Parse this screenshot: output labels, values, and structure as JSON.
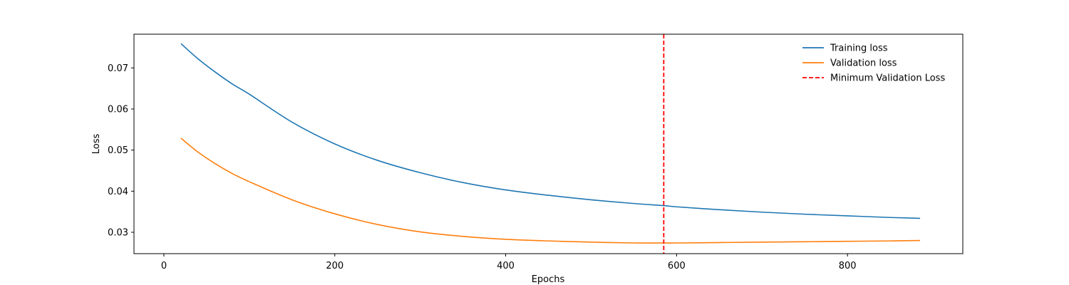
{
  "chart_data": {
    "type": "line",
    "title": "",
    "xlabel": "Epochs",
    "ylabel": "Loss",
    "xlim": [
      -35,
      935
    ],
    "ylim": [
      0.0248,
      0.0782
    ],
    "xticks": [
      0,
      200,
      400,
      600,
      800
    ],
    "yticks": [
      0.03,
      0.04,
      0.05,
      0.06,
      0.07
    ],
    "grid": false,
    "legend_position": "top-right",
    "x": [
      20,
      40,
      60,
      80,
      100,
      150,
      200,
      250,
      300,
      350,
      400,
      450,
      500,
      550,
      585,
      600,
      650,
      700,
      750,
      800,
      850,
      885
    ],
    "series": [
      {
        "name": "Training loss",
        "color": "#1f77b4",
        "style": "solid",
        "values": [
          0.0759,
          0.0722,
          0.069,
          0.0661,
          0.0636,
          0.0568,
          0.0515,
          0.0475,
          0.0445,
          0.0421,
          0.0403,
          0.039,
          0.0379,
          0.037,
          0.0365,
          0.0362,
          0.0355,
          0.0349,
          0.0344,
          0.034,
          0.0336,
          0.0334
        ]
      },
      {
        "name": "Validation loss",
        "color": "#ff7f0e",
        "style": "solid",
        "values": [
          0.0529,
          0.0495,
          0.0467,
          0.0443,
          0.0423,
          0.0379,
          0.0345,
          0.0319,
          0.0301,
          0.029,
          0.0283,
          0.0279,
          0.0276,
          0.0274,
          0.0274,
          0.0274,
          0.0275,
          0.0276,
          0.0277,
          0.0278,
          0.0279,
          0.028
        ]
      }
    ],
    "vlines": [
      {
        "name": "Minimum Validation Loss",
        "x": 585,
        "color": "#ff0000",
        "style": "dashed"
      }
    ]
  }
}
